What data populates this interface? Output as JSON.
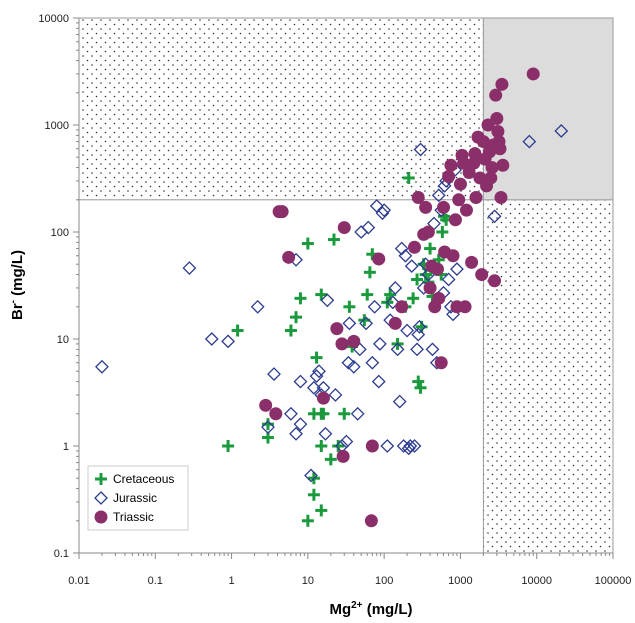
{
  "chart_data": {
    "type": "scatter",
    "x_scale": "log",
    "y_scale": "log",
    "xlim": [
      0.01,
      100000
    ],
    "ylim": [
      0.1,
      10000
    ],
    "x_ticks": [
      "0.01",
      "0.1",
      "1",
      "10",
      "100",
      "1000",
      "10000",
      "100000"
    ],
    "y_ticks": [
      "0.1",
      "1",
      "10",
      "100",
      "1000",
      "10000"
    ],
    "xlabel_main": "Mg",
    "xlabel_sup": "2+",
    "xlabel_unit": " (mg/L)",
    "ylabel_main": "Br",
    "ylabel_sup": "-",
    "ylabel_unit": " (mg/L)",
    "legend_position": "bottom-left",
    "regions": [
      {
        "style": "dotted",
        "x": [
          0.01,
          2000
        ],
        "y": [
          200,
          10000
        ]
      },
      {
        "style": "dotted",
        "x": [
          2000,
          100000
        ],
        "y": [
          0.1,
          200
        ]
      },
      {
        "style": "gray",
        "x": [
          2000,
          100000
        ],
        "y": [
          200,
          10000
        ]
      }
    ],
    "series": [
      {
        "name": "Cretaceous",
        "marker": "plus",
        "color": "#1a9a3c",
        "points": [
          [
            0.9,
            1
          ],
          [
            1.2,
            12
          ],
          [
            3,
            1.2
          ],
          [
            3,
            1.6
          ],
          [
            6,
            12
          ],
          [
            7,
            16
          ],
          [
            8,
            24
          ],
          [
            10,
            78
          ],
          [
            10,
            0.2
          ],
          [
            12,
            0.35
          ],
          [
            12,
            0.5
          ],
          [
            12,
            2
          ],
          [
            13,
            6.7
          ],
          [
            15,
            1
          ],
          [
            15,
            2
          ],
          [
            15,
            0.25
          ],
          [
            15,
            26
          ],
          [
            16,
            2
          ],
          [
            20,
            0.75
          ],
          [
            22,
            85
          ],
          [
            25,
            1
          ],
          [
            30,
            2
          ],
          [
            35,
            20
          ],
          [
            38,
            8.5
          ],
          [
            55,
            15
          ],
          [
            60,
            26
          ],
          [
            65,
            42
          ],
          [
            70,
            62
          ],
          [
            110,
            22
          ],
          [
            120,
            26
          ],
          [
            150,
            9
          ],
          [
            190,
            20
          ],
          [
            210,
            320
          ],
          [
            240,
            24
          ],
          [
            270,
            36
          ],
          [
            280,
            4
          ],
          [
            300,
            3.5
          ],
          [
            310,
            13
          ],
          [
            330,
            50
          ],
          [
            350,
            40
          ],
          [
            380,
            34
          ],
          [
            400,
            70
          ],
          [
            410,
            44
          ],
          [
            430,
            25
          ],
          [
            470,
            46
          ],
          [
            520,
            55
          ],
          [
            560,
            40
          ],
          [
            580,
            100
          ],
          [
            610,
            140
          ],
          [
            650,
            130
          ]
        ]
      },
      {
        "name": "Jurassic",
        "marker": "diamond",
        "color": "#2d3c8e",
        "points": [
          [
            0.02,
            5.5
          ],
          [
            0.28,
            46
          ],
          [
            0.55,
            10
          ],
          [
            0.9,
            9.5
          ],
          [
            2.2,
            20
          ],
          [
            3,
            1.5
          ],
          [
            3.6,
            4.7
          ],
          [
            6,
            2
          ],
          [
            7,
            1.3
          ],
          [
            7,
            55
          ],
          [
            8,
            1.6
          ],
          [
            8,
            4
          ],
          [
            11,
            0.53
          ],
          [
            12,
            3.5
          ],
          [
            13,
            4.5
          ],
          [
            14,
            5
          ],
          [
            15,
            3
          ],
          [
            16,
            3.5
          ],
          [
            17,
            1.3
          ],
          [
            18,
            23
          ],
          [
            23,
            3
          ],
          [
            28,
            1
          ],
          [
            32,
            1.1
          ],
          [
            34,
            6
          ],
          [
            35,
            14
          ],
          [
            40,
            5.5
          ],
          [
            45,
            2
          ],
          [
            48,
            8
          ],
          [
            50,
            100
          ],
          [
            58,
            14
          ],
          [
            62,
            110
          ],
          [
            70,
            6
          ],
          [
            75,
            20
          ],
          [
            80,
            175
          ],
          [
            85,
            4
          ],
          [
            88,
            9
          ],
          [
            95,
            150
          ],
          [
            100,
            160
          ],
          [
            110,
            1
          ],
          [
            120,
            15
          ],
          [
            130,
            22
          ],
          [
            140,
            30
          ],
          [
            150,
            8
          ],
          [
            160,
            2.6
          ],
          [
            170,
            70
          ],
          [
            180,
            1
          ],
          [
            190,
            60
          ],
          [
            200,
            12
          ],
          [
            210,
            0.95
          ],
          [
            220,
            1
          ],
          [
            230,
            48
          ],
          [
            250,
            1
          ],
          [
            270,
            8
          ],
          [
            280,
            11
          ],
          [
            290,
            13
          ],
          [
            300,
            590
          ],
          [
            330,
            30
          ],
          [
            350,
            50
          ],
          [
            380,
            40
          ],
          [
            430,
            8
          ],
          [
            450,
            120
          ],
          [
            490,
            6
          ],
          [
            520,
            220
          ],
          [
            560,
            160
          ],
          [
            600,
            27
          ],
          [
            620,
            270
          ],
          [
            650,
            300
          ],
          [
            700,
            36
          ],
          [
            750,
            20
          ],
          [
            800,
            17
          ],
          [
            850,
            380
          ],
          [
            900,
            45
          ],
          [
            2800,
            140
          ],
          [
            8000,
            700
          ],
          [
            21000,
            880
          ]
        ]
      },
      {
        "name": "Triassic",
        "marker": "circle",
        "color": "#8b2f6a",
        "points": [
          [
            2.8,
            2.4
          ],
          [
            3.8,
            2
          ],
          [
            4.2,
            155
          ],
          [
            4.6,
            155
          ],
          [
            5.6,
            58
          ],
          [
            16,
            2.8
          ],
          [
            24,
            12.5
          ],
          [
            28,
            9
          ],
          [
            29,
            0.8
          ],
          [
            30,
            110
          ],
          [
            40,
            9.5
          ],
          [
            68,
            0.2
          ],
          [
            70,
            1
          ],
          [
            85,
            56
          ],
          [
            140,
            14
          ],
          [
            170,
            20
          ],
          [
            250,
            72
          ],
          [
            280,
            210
          ],
          [
            330,
            95
          ],
          [
            350,
            170
          ],
          [
            380,
            100
          ],
          [
            400,
            30
          ],
          [
            420,
            48
          ],
          [
            460,
            20
          ],
          [
            500,
            45
          ],
          [
            520,
            24
          ],
          [
            560,
            6
          ],
          [
            600,
            170
          ],
          [
            620,
            65
          ],
          [
            700,
            330
          ],
          [
            750,
            420
          ],
          [
            800,
            60
          ],
          [
            860,
            130
          ],
          [
            900,
            20
          ],
          [
            950,
            200
          ],
          [
            1000,
            280
          ],
          [
            1050,
            520
          ],
          [
            1100,
            440
          ],
          [
            1150,
            20
          ],
          [
            1200,
            160
          ],
          [
            1300,
            360
          ],
          [
            1400,
            52
          ],
          [
            1500,
            440
          ],
          [
            1550,
            540
          ],
          [
            1600,
            210
          ],
          [
            1700,
            770
          ],
          [
            1800,
            320
          ],
          [
            1900,
            40
          ],
          [
            2000,
            700
          ],
          [
            2100,
            480
          ],
          [
            2200,
            270
          ],
          [
            2300,
            1000
          ],
          [
            2400,
            560
          ],
          [
            2500,
            320
          ],
          [
            2600,
            400
          ],
          [
            2700,
            650
          ],
          [
            2800,
            35
          ],
          [
            2900,
            1900
          ],
          [
            3000,
            1150
          ],
          [
            3100,
            870
          ],
          [
            3200,
            700
          ],
          [
            3300,
            600
          ],
          [
            3400,
            210
          ],
          [
            3500,
            2400
          ],
          [
            3600,
            420
          ],
          [
            9000,
            3000
          ]
        ]
      }
    ]
  }
}
